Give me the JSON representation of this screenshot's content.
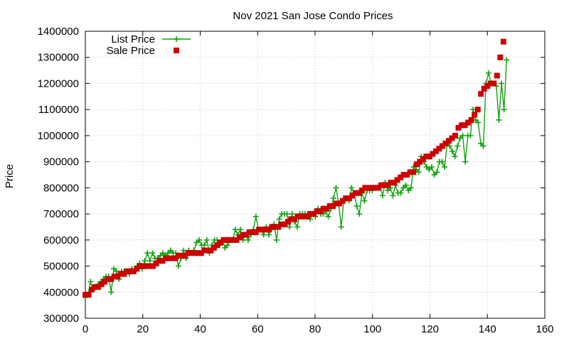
{
  "chart_data": {
    "type": "scatter",
    "title": "Nov 2021 San Jose Condo Prices",
    "xlabel": "",
    "ylabel": "Price",
    "xlim": [
      0,
      160
    ],
    "ylim": [
      300000,
      1400000
    ],
    "x_ticks": [
      0,
      20,
      40,
      60,
      80,
      100,
      120,
      140,
      160
    ],
    "y_ticks": [
      300000,
      400000,
      500000,
      600000,
      700000,
      800000,
      900000,
      1000000,
      1100000,
      1200000,
      1300000,
      1400000
    ],
    "grid": true,
    "legend_position": "top-left",
    "series": [
      {
        "name": "List Price",
        "style": "linespoints",
        "color": "#11a111",
        "marker": "plus",
        "values": [
          380000,
          390000,
          440000,
          410000,
          420000,
          430000,
          440000,
          450000,
          460000,
          460000,
          400000,
          490000,
          480000,
          450000,
          480000,
          480000,
          480000,
          470000,
          490000,
          480000,
          500000,
          510000,
          490000,
          520000,
          550000,
          520000,
          550000,
          530000,
          530000,
          540000,
          550000,
          540000,
          550000,
          560000,
          550000,
          550000,
          500000,
          530000,
          560000,
          530000,
          560000,
          550000,
          560000,
          590000,
          600000,
          580000,
          580000,
          600000,
          550000,
          580000,
          600000,
          600000,
          580000,
          600000,
          570000,
          580000,
          600000,
          600000,
          640000,
          620000,
          640000,
          600000,
          620000,
          600000,
          620000,
          640000,
          690000,
          640000,
          640000,
          620000,
          650000,
          620000,
          640000,
          660000,
          600000,
          680000,
          700000,
          700000,
          700000,
          650000,
          700000,
          670000,
          650000,
          700000,
          700000,
          700000,
          700000,
          680000,
          700000,
          690000,
          720000,
          700000,
          700000,
          710000,
          690000,
          720000,
          760000,
          800000,
          740000,
          650000,
          750000,
          760000,
          750000,
          800000,
          780000,
          730000,
          700000,
          780000,
          750000,
          790000,
          790000,
          790000,
          800000,
          800000,
          810000,
          770000,
          820000,
          790000,
          800000,
          770000,
          810000,
          780000,
          780000,
          800000,
          810000,
          790000,
          800000,
          880000,
          870000,
          860000,
          920000,
          900000,
          880000,
          870000,
          880000,
          850000,
          860000,
          900000,
          900000,
          880000,
          970000,
          960000,
          940000,
          920000,
          960000,
          990000,
          1000000,
          900000,
          1000000,
          1000000,
          1100000,
          1060000,
          1050000,
          970000,
          960000,
          1200000,
          1240000,
          1200000,
          1200000,
          1190000,
          1060000,
          1200000,
          1100000,
          1290000
        ],
        "x_step": 0.9
      },
      {
        "name": "Sale Price",
        "style": "points",
        "color": "#cc0000",
        "marker": "square",
        "values": [
          390000,
          390000,
          410000,
          420000,
          420000,
          430000,
          440000,
          450000,
          450000,
          460000,
          460000,
          470000,
          470000,
          480000,
          480000,
          480000,
          490000,
          500000,
          500000,
          500000,
          500000,
          500000,
          510000,
          520000,
          520000,
          530000,
          530000,
          530000,
          530000,
          540000,
          540000,
          540000,
          550000,
          550000,
          550000,
          550000,
          550000,
          560000,
          560000,
          560000,
          570000,
          580000,
          590000,
          600000,
          600000,
          600000,
          600000,
          600000,
          610000,
          620000,
          620000,
          630000,
          630000,
          630000,
          640000,
          640000,
          640000,
          640000,
          650000,
          650000,
          650000,
          660000,
          660000,
          670000,
          680000,
          680000,
          690000,
          690000,
          690000,
          690000,
          700000,
          700000,
          710000,
          710000,
          720000,
          720000,
          730000,
          730000,
          740000,
          740000,
          750000,
          760000,
          760000,
          770000,
          780000,
          780000,
          790000,
          800000,
          800000,
          800000,
          800000,
          800000,
          810000,
          810000,
          810000,
          820000,
          820000,
          830000,
          840000,
          850000,
          850000,
          860000,
          860000,
          890000,
          900000,
          910000,
          920000,
          920000,
          930000,
          940000,
          950000,
          960000,
          970000,
          980000,
          990000,
          1000000,
          1030000,
          1040000,
          1040000,
          1050000,
          1060000,
          1080000,
          1100000,
          1160000,
          1180000,
          1190000,
          1200000,
          1200000,
          1230000,
          1300000,
          1360000
        ],
        "x_step": 1.12
      }
    ]
  }
}
